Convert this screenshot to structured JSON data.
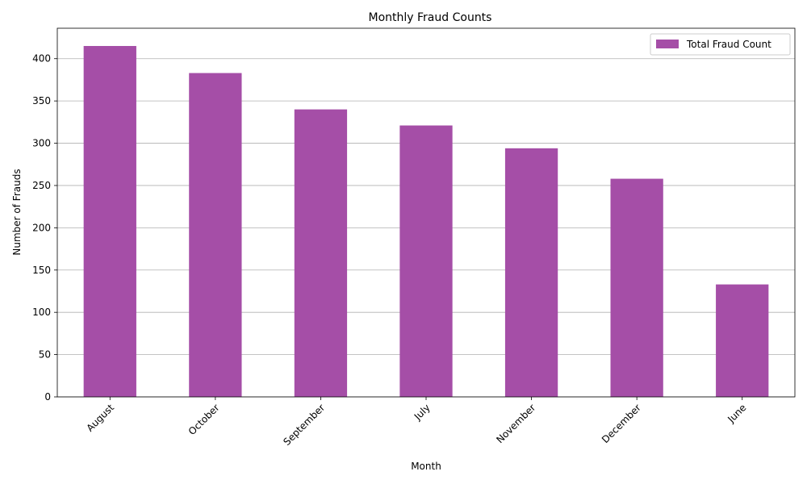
{
  "chart_data": {
    "type": "bar",
    "title": "Monthly Fraud Counts",
    "xlabel": "Month",
    "ylabel": "Number of Frauds",
    "categories": [
      "August",
      "October",
      "September",
      "July",
      "November",
      "December",
      "June"
    ],
    "series": [
      {
        "name": "Total Fraud Count",
        "values": [
          415,
          383,
          340,
          321,
          294,
          258,
          133
        ]
      }
    ],
    "ylim": [
      0,
      436
    ],
    "yticks": [
      0,
      50,
      100,
      150,
      200,
      250,
      300,
      350,
      400
    ],
    "x_tick_rotation": 45,
    "grid": "y",
    "legend_position": "top-right",
    "colors": {
      "bar": "#a54ea7",
      "grid": "#b0b0b0",
      "axis": "#000000"
    }
  }
}
